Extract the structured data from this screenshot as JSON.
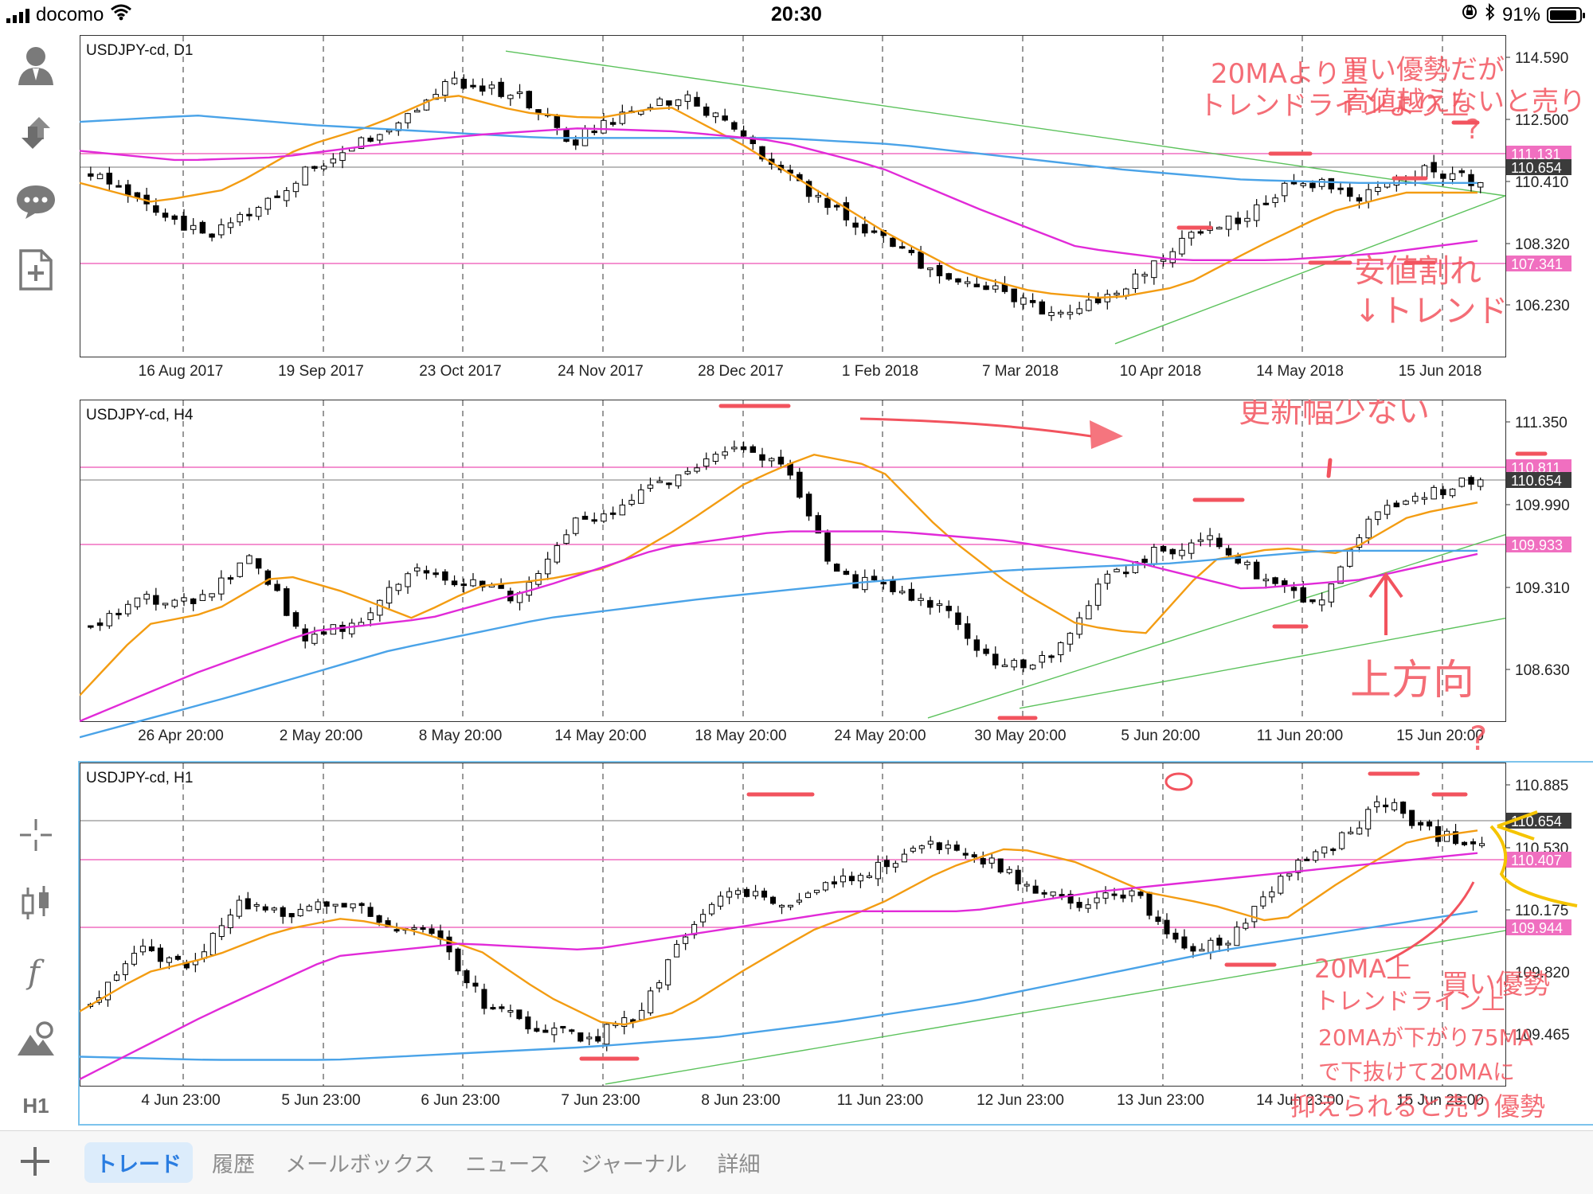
{
  "status_bar": {
    "carrier": "docomo",
    "time": "20:30",
    "battery": "91%",
    "battery_level": 0.91
  },
  "sidebar": {
    "top_icons": [
      "account-icon",
      "trade-arrows-icon",
      "chat-icon",
      "new-order-icon"
    ],
    "chart_tools": [
      "crosshair-icon",
      "candlestick-icon",
      "indicator-function-icon",
      "objects-icon"
    ],
    "timeframe": "H1"
  },
  "colors": {
    "ma_short": "#f39c12",
    "ma_long": "#e12ad8",
    "ma_longest": "#4aa3e8",
    "hline": "#f06fc0",
    "trendline": "#5cc25c",
    "annotation_red": "#f2535e",
    "annotation_yellow": "#f5c400",
    "bull": "#ffffff",
    "bear": "#000000"
  },
  "charts": [
    {
      "symbol": "USDJPY-cd, D1",
      "y_ticks": [
        "114.590",
        "112.500",
        "110.410",
        "108.320",
        "106.230"
      ],
      "x_ticks": [
        "16 Aug 2017",
        "19 Sep 2017",
        "23 Oct 2017",
        "24 Nov 2017",
        "28 Dec 2017",
        "1 Feb 2018",
        "7 Mar 2018",
        "10 Apr 2018",
        "14 May 2018",
        "15 Jun 2018"
      ],
      "price_tags": [
        {
          "label": "111.131",
          "kind": "pink"
        },
        {
          "label": "110.654",
          "kind": "current"
        },
        {
          "label": "107.341",
          "kind": "pink"
        }
      ],
      "annotations": [
        "20MAより上",
        "トレンドラインより上",
        "買い優勢だが",
        "高値越えないと売り",
        "?",
        "安値割れ",
        "↓トレンド"
      ]
    },
    {
      "symbol": "USDJPY-cd, H4",
      "y_ticks": [
        "111.350",
        "109.990",
        "109.310",
        "108.630"
      ],
      "x_ticks": [
        "26 Apr 20:00",
        "2 May 20:00",
        "8 May 20:00",
        "14 May 20:00",
        "18 May 20:00",
        "24 May 20:00",
        "30 May 20:00",
        "5 Jun 20:00",
        "11 Jun 20:00",
        "15 Jun 20:00"
      ],
      "price_tags": [
        {
          "label": "110.811",
          "kind": "pink"
        },
        {
          "label": "110.654",
          "kind": "current"
        },
        {
          "label": "109.933",
          "kind": "pink"
        }
      ],
      "annotations": [
        "更新幅少ない",
        "上方向",
        "?"
      ]
    },
    {
      "symbol": "USDJPY-cd, H1",
      "y_ticks": [
        "110.885",
        "110.530",
        "110.175",
        "109.820",
        "109.465"
      ],
      "x_ticks": [
        "4 Jun 23:00",
        "5 Jun 23:00",
        "6 Jun 23:00",
        "7 Jun 23:00",
        "8 Jun 23:00",
        "11 Jun 23:00",
        "12 Jun 23:00",
        "13 Jun 23:00",
        "14 Jun 23:00",
        "15 Jun 23:00"
      ],
      "price_tags": [
        {
          "label": "110.654",
          "kind": "current"
        },
        {
          "label": "110.407",
          "kind": "pink"
        },
        {
          "label": "109.944",
          "kind": "pink"
        }
      ],
      "annotations": [
        "20MA上",
        "トレンドライン上",
        "買い優勢",
        "20MAが下がり75MA",
        "で下抜けて20MAに",
        "抑えられると売り優勢"
      ]
    }
  ],
  "tabs": [
    {
      "label": "トレード",
      "active": true
    },
    {
      "label": "履歴",
      "active": false
    },
    {
      "label": "メールボックス",
      "active": false
    },
    {
      "label": "ニュース",
      "active": false
    },
    {
      "label": "ジャーナル",
      "active": false
    },
    {
      "label": "詳細",
      "active": false
    }
  ]
}
